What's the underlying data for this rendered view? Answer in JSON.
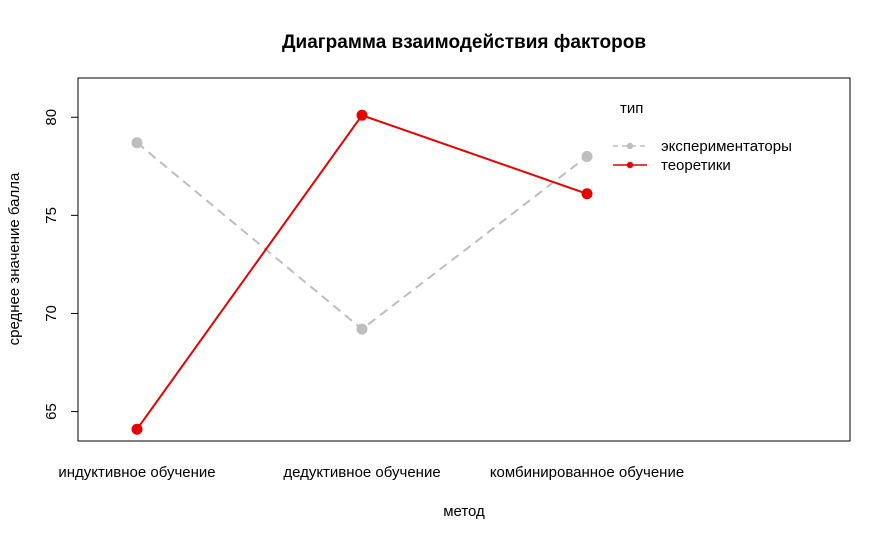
{
  "chart_data": {
    "type": "line",
    "title": "Диаграмма взаимодействия факторов",
    "xlabel": "метод",
    "ylabel": "среднее значение балла",
    "categories": [
      "индуктивное обучение",
      "дедуктивное обучение",
      "комбинированное обучение"
    ],
    "ylim": [
      63.5,
      82.0
    ],
    "yticks": [
      65,
      70,
      75,
      80
    ],
    "grid": false,
    "legend": {
      "title": "тип",
      "position": "top-right"
    },
    "series": [
      {
        "name": "экспериментаторы",
        "values": [
          78.7,
          69.2,
          78.0
        ],
        "color": "#bebebe",
        "style": "dashed"
      },
      {
        "name": "теоретики",
        "values": [
          64.1,
          80.1,
          76.1
        ],
        "color": "#e60000",
        "style": "solid"
      }
    ]
  }
}
